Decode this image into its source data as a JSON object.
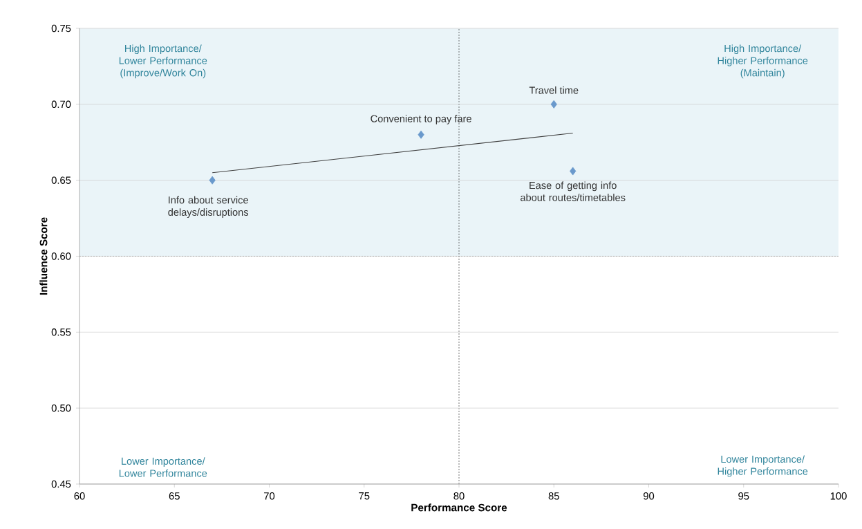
{
  "chart_data": {
    "type": "scatter",
    "xlabel": "Performance Score",
    "ylabel": "Influence Score",
    "xlim": [
      60,
      100
    ],
    "ylim": [
      0.45,
      0.75
    ],
    "xticks": [
      60,
      65,
      70,
      75,
      80,
      85,
      90,
      95,
      100
    ],
    "yticks": [
      0.45,
      {
        "value": 0.5,
        "label": "0.50"
      },
      0.55,
      {
        "value": 0.6,
        "label": "0.60"
      },
      0.65,
      {
        "value": 0.7,
        "label": "0.70"
      },
      0.75
    ],
    "grid": "y",
    "marker": "diamond",
    "series": [
      {
        "color": "#6a99cc",
        "x": [
          67,
          78,
          85,
          86
        ],
        "values": [
          0.65,
          0.68,
          0.7,
          0.656
        ]
      },
      {
        "type": "line",
        "marker": "none",
        "color": "#404040",
        "x": [
          67,
          86
        ],
        "values": [
          0.655,
          0.681
        ]
      }
    ],
    "bands": [
      {
        "axis": "y",
        "from": 0.6,
        "to": 0.75,
        "color": "#eaf4f8"
      }
    ],
    "ref_lines": [
      {
        "axis": "x",
        "value": 80,
        "line_style": "dashed"
      },
      {
        "axis": "y",
        "value": 0.6,
        "line_style": "dashed"
      }
    ],
    "annotations": [
      {
        "text": "Info about service delays/disruptions",
        "x": 67,
        "y": 0.65
      },
      {
        "text": "Convenient to pay fare",
        "x": 78,
        "y": 0.68
      },
      {
        "text": "Travel time",
        "x": 85,
        "y": 0.7
      },
      {
        "text": "Ease of getting info about routes/timetables",
        "x": 86,
        "y": 0.656
      },
      "High Importance/ Lower Performance (Improve/Work On)",
      "High Importance/ Higher Performance (Maintain)",
      "Lower Importance/ Lower Performance",
      "Lower Importance/ Higher Performance"
    ]
  }
}
